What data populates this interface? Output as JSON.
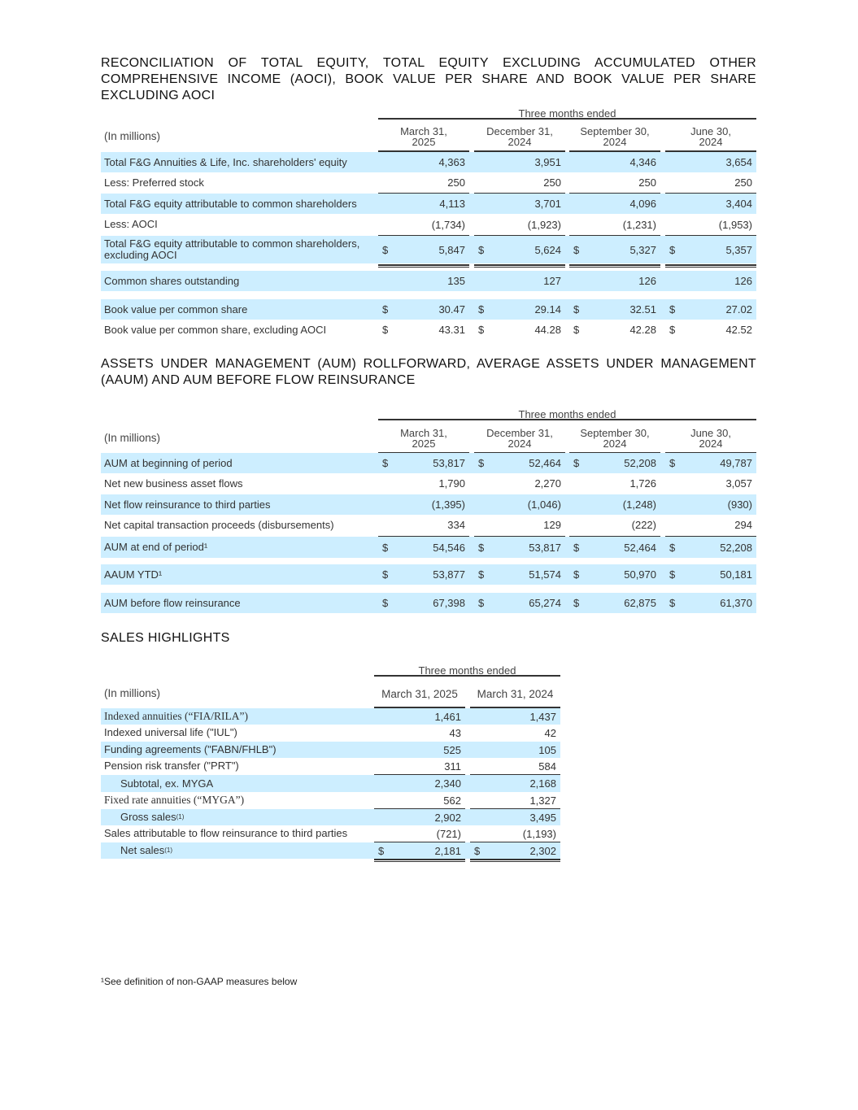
{
  "section1": {
    "title": "RECONCILIATION OF TOTAL EQUITY, TOTAL EQUITY EXCLUDING ACCUMULATED OTHER COMPREHENSIVE INCOME (AOCI), BOOK VALUE PER SHARE AND BOOK VALUE PER SHARE EXCLUDING AOCI",
    "period_header": "Three months ended",
    "unit_label": "(In millions)",
    "columns": [
      "March 31,\n2025",
      "December 31,\n2024",
      "September 30,\n2024",
      "June 30,\n2024"
    ],
    "rows": [
      {
        "label": "Total F&G Annuities & Life, Inc. shareholders' equity",
        "cells": [
          {
            "cur": "",
            "val": "4,363"
          },
          {
            "cur": "",
            "val": "3,951"
          },
          {
            "cur": "",
            "val": "4,346"
          },
          {
            "cur": "",
            "val": "3,654"
          }
        ]
      },
      {
        "label": "Less: Preferred stock",
        "cells": [
          {
            "cur": "",
            "val": "250"
          },
          {
            "cur": "",
            "val": "250"
          },
          {
            "cur": "",
            "val": "250"
          },
          {
            "cur": "",
            "val": "250"
          }
        ]
      },
      {
        "label": "Total F&G equity attributable to common shareholders",
        "cells": [
          {
            "cur": "",
            "val": "4,113"
          },
          {
            "cur": "",
            "val": "3,701"
          },
          {
            "cur": "",
            "val": "4,096"
          },
          {
            "cur": "",
            "val": "3,404"
          }
        ]
      },
      {
        "label": "Less: AOCI",
        "cells": [
          {
            "cur": "",
            "val": "(1,734)"
          },
          {
            "cur": "",
            "val": "(1,923)"
          },
          {
            "cur": "",
            "val": "(1,231)"
          },
          {
            "cur": "",
            "val": "(1,953)"
          }
        ]
      },
      {
        "label": "Total F&G equity attributable to common shareholders, excluding AOCI",
        "cells": [
          {
            "cur": "$",
            "val": "5,847"
          },
          {
            "cur": "$",
            "val": "5,624"
          },
          {
            "cur": "$",
            "val": "5,327"
          },
          {
            "cur": "$",
            "val": "5,357"
          }
        ]
      },
      {
        "label": "Common shares outstanding",
        "cells": [
          {
            "cur": "",
            "val": "135"
          },
          {
            "cur": "",
            "val": "127"
          },
          {
            "cur": "",
            "val": "126"
          },
          {
            "cur": "",
            "val": "126"
          }
        ]
      },
      {
        "label": "Book value per common share",
        "cells": [
          {
            "cur": "$",
            "val": "30.47"
          },
          {
            "cur": "$",
            "val": "29.14"
          },
          {
            "cur": "$",
            "val": "32.51"
          },
          {
            "cur": "$",
            "val": "27.02"
          }
        ]
      },
      {
        "label": "Book value per common share, excluding AOCI",
        "cells": [
          {
            "cur": "$",
            "val": "43.31"
          },
          {
            "cur": "$",
            "val": "44.28"
          },
          {
            "cur": "$",
            "val": "42.28"
          },
          {
            "cur": "$",
            "val": "42.52"
          }
        ]
      }
    ]
  },
  "section2": {
    "title": "ASSETS UNDER MANAGEMENT (AUM) ROLLFORWARD, AVERAGE ASSETS UNDER MANAGEMENT (AAUM) AND AUM BEFORE FLOW REINSURANCE",
    "period_header": "Three months ended",
    "unit_label": "(In millions)",
    "columns": [
      "March 31,\n2025",
      "December 31,\n2024",
      "September 30,\n2024",
      "June 30,\n2024"
    ],
    "rows": [
      {
        "label": "AUM at beginning of period",
        "cells": [
          {
            "cur": "$",
            "val": "53,817"
          },
          {
            "cur": "$",
            "val": "52,464"
          },
          {
            "cur": "$",
            "val": "52,208"
          },
          {
            "cur": "$",
            "val": "49,787"
          }
        ]
      },
      {
        "label": "Net new business asset flows",
        "cells": [
          {
            "cur": "",
            "val": "1,790"
          },
          {
            "cur": "",
            "val": "2,270"
          },
          {
            "cur": "",
            "val": "1,726"
          },
          {
            "cur": "",
            "val": "3,057"
          }
        ]
      },
      {
        "label": "Net flow reinsurance to third parties",
        "cells": [
          {
            "cur": "",
            "val": "(1,395)"
          },
          {
            "cur": "",
            "val": "(1,046)"
          },
          {
            "cur": "",
            "val": "(1,248)"
          },
          {
            "cur": "",
            "val": "(930)"
          }
        ]
      },
      {
        "label": "Net capital transaction proceeds (disbursements)",
        "cells": [
          {
            "cur": "",
            "val": "334"
          },
          {
            "cur": "",
            "val": "129"
          },
          {
            "cur": "",
            "val": "(222)"
          },
          {
            "cur": "",
            "val": "294"
          }
        ]
      },
      {
        "label": "AUM at end of period¹",
        "cells": [
          {
            "cur": "$",
            "val": "54,546"
          },
          {
            "cur": "$",
            "val": "53,817"
          },
          {
            "cur": "$",
            "val": "52,464"
          },
          {
            "cur": "$",
            "val": "52,208"
          }
        ]
      },
      {
        "label": "AAUM YTD¹",
        "cells": [
          {
            "cur": "$",
            "val": "53,877"
          },
          {
            "cur": "$",
            "val": "51,574"
          },
          {
            "cur": "$",
            "val": "50,970"
          },
          {
            "cur": "$",
            "val": "50,181"
          }
        ]
      },
      {
        "label": "AUM before flow reinsurance",
        "cells": [
          {
            "cur": "$",
            "val": "67,398"
          },
          {
            "cur": "$",
            "val": "65,274"
          },
          {
            "cur": "$",
            "val": "62,875"
          },
          {
            "cur": "$",
            "val": "61,370"
          }
        ]
      }
    ]
  },
  "section3": {
    "title": "SALES HIGHLIGHTS",
    "period_header": "Three months ended",
    "unit_label": "(In millions)",
    "columns": [
      "March 31, 2025",
      "March 31, 2024"
    ],
    "rows": [
      {
        "label": "Indexed annuities (“FIA/RILA”)",
        "cells": [
          {
            "cur": "",
            "val": "1,461"
          },
          {
            "cur": "",
            "val": "1,437"
          }
        ]
      },
      {
        "label": "Indexed universal life (\"IUL\")",
        "cells": [
          {
            "cur": "",
            "val": "43"
          },
          {
            "cur": "",
            "val": "42"
          }
        ]
      },
      {
        "label": "Funding agreements (\"FABN/FHLB\")",
        "cells": [
          {
            "cur": "",
            "val": "525"
          },
          {
            "cur": "",
            "val": "105"
          }
        ]
      },
      {
        "label": "Pension risk transfer (\"PRT\")",
        "cells": [
          {
            "cur": "",
            "val": "311"
          },
          {
            "cur": "",
            "val": "584"
          }
        ]
      },
      {
        "label": "Subtotal, ex. MYGA",
        "cells": [
          {
            "cur": "",
            "val": "2,340"
          },
          {
            "cur": "",
            "val": "2,168"
          }
        ]
      },
      {
        "label": "Fixed rate annuities (“MYGA”)",
        "cells": [
          {
            "cur": "",
            "val": "562"
          },
          {
            "cur": "",
            "val": "1,327"
          }
        ]
      },
      {
        "label": "Gross sales",
        "sup": "(1)",
        "cells": [
          {
            "cur": "",
            "val": "2,902"
          },
          {
            "cur": "",
            "val": "3,495"
          }
        ]
      },
      {
        "label": "Sales attributable to flow reinsurance to third parties",
        "cells": [
          {
            "cur": "",
            "val": "(721)"
          },
          {
            "cur": "",
            "val": "(1,193)"
          }
        ]
      },
      {
        "label": "Net sales",
        "sup": "(1)",
        "cells": [
          {
            "cur": "$",
            "val": "2,181"
          },
          {
            "cur": "$",
            "val": "2,302"
          }
        ]
      }
    ]
  },
  "footnote": "¹See definition of non-GAAP measures below",
  "colors": {
    "row_shade": "#cdeeff",
    "rule": "#333333"
  }
}
